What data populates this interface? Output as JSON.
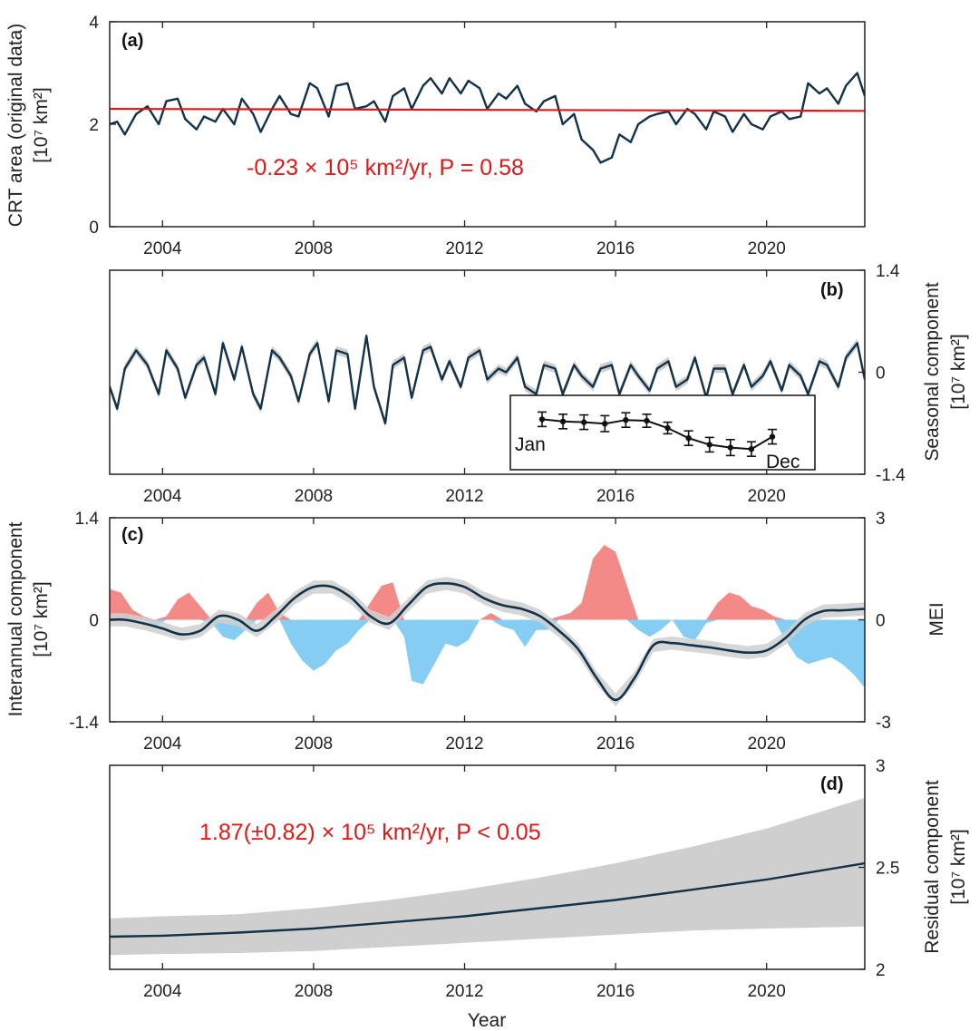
{
  "figure": {
    "xlabel": "Year",
    "x_range": [
      2002.6,
      2022.6
    ],
    "x_ticks": [
      2004,
      2008,
      2012,
      2016,
      2020
    ],
    "colors": {
      "line": "#12324a",
      "trend": "#e01818",
      "band": "#cfcfcf",
      "pos": "#f48a88",
      "neg": "#85cdf2"
    }
  },
  "chart_data": [
    {
      "id": "a",
      "panel_label": "(a)",
      "type": "line",
      "title": "",
      "ylabel": "CRT area (original data)",
      "yunit": "[10⁷ km²]",
      "ylim": [
        0,
        4
      ],
      "yticks": [
        "0",
        "2",
        "4"
      ],
      "y_axis_side": "left",
      "annotation": "-0.23 × 10⁵ km²/yr, P = 0.58",
      "trend_line": {
        "x": [
          2002.6,
          2022.6
        ],
        "y": [
          2.3,
          2.26
        ]
      },
      "series": [
        {
          "name": "CRT area",
          "x": [
            2002.6,
            2002.8,
            2003.0,
            2003.3,
            2003.6,
            2003.9,
            2004.1,
            2004.4,
            2004.6,
            2004.9,
            2005.1,
            2005.4,
            2005.6,
            2005.9,
            2006.1,
            2006.4,
            2006.6,
            2006.9,
            2007.1,
            2007.4,
            2007.6,
            2007.9,
            2008.1,
            2008.4,
            2008.6,
            2008.9,
            2009.1,
            2009.4,
            2009.6,
            2009.9,
            2010.1,
            2010.4,
            2010.6,
            2010.9,
            2011.1,
            2011.4,
            2011.6,
            2011.9,
            2012.1,
            2012.4,
            2012.6,
            2012.9,
            2013.1,
            2013.4,
            2013.6,
            2013.9,
            2014.1,
            2014.4,
            2014.6,
            2014.9,
            2015.1,
            2015.4,
            2015.6,
            2015.9,
            2016.1,
            2016.4,
            2016.6,
            2016.9,
            2017.1,
            2017.4,
            2017.6,
            2017.9,
            2018.1,
            2018.4,
            2018.6,
            2018.9,
            2019.1,
            2019.4,
            2019.6,
            2019.9,
            2020.1,
            2020.4,
            2020.6,
            2020.9,
            2021.1,
            2021.4,
            2021.6,
            2021.9,
            2022.1,
            2022.4,
            2022.6
          ],
          "y": [
            2.0,
            2.05,
            1.8,
            2.2,
            2.35,
            2.0,
            2.45,
            2.5,
            2.1,
            1.9,
            2.15,
            2.05,
            2.3,
            2.0,
            2.5,
            2.2,
            1.85,
            2.3,
            2.55,
            2.2,
            2.15,
            2.8,
            2.7,
            2.15,
            2.75,
            2.8,
            2.3,
            2.35,
            2.45,
            2.05,
            2.55,
            2.7,
            2.3,
            2.75,
            2.9,
            2.6,
            2.9,
            2.6,
            2.85,
            2.7,
            2.3,
            2.6,
            2.5,
            2.75,
            2.4,
            2.25,
            2.45,
            2.55,
            2.0,
            2.2,
            1.7,
            1.5,
            1.25,
            1.35,
            1.8,
            1.65,
            2.0,
            2.15,
            2.2,
            2.25,
            2.0,
            2.3,
            2.2,
            1.9,
            2.25,
            2.15,
            1.85,
            2.2,
            2.0,
            1.9,
            2.15,
            2.25,
            2.1,
            2.15,
            2.8,
            2.6,
            2.7,
            2.4,
            2.75,
            3.0,
            2.55
          ]
        }
      ]
    },
    {
      "id": "b",
      "panel_label": "(b)",
      "type": "line",
      "title": "",
      "ylabel": "Seasonal component",
      "yunit": "[10⁷ km²]",
      "ylim": [
        -1.4,
        1.4
      ],
      "yticks": [
        "-1.4",
        "0",
        "1.4"
      ],
      "y_axis_side": "right",
      "series": [
        {
          "name": "Seasonal",
          "x": [
            2002.6,
            2002.8,
            2003.0,
            2003.3,
            2003.6,
            2003.9,
            2004.1,
            2004.4,
            2004.6,
            2004.9,
            2005.1,
            2005.4,
            2005.6,
            2005.9,
            2006.1,
            2006.4,
            2006.6,
            2006.9,
            2007.1,
            2007.4,
            2007.6,
            2007.9,
            2008.1,
            2008.4,
            2008.6,
            2008.9,
            2009.1,
            2009.4,
            2009.6,
            2009.9,
            2010.1,
            2010.4,
            2010.6,
            2010.9,
            2011.1,
            2011.4,
            2011.6,
            2011.9,
            2012.1,
            2012.4,
            2012.6,
            2012.9,
            2013.1,
            2013.4,
            2013.6,
            2013.9,
            2014.1,
            2014.4,
            2014.6,
            2014.9,
            2015.1,
            2015.4,
            2015.6,
            2015.9,
            2016.1,
            2016.4,
            2016.6,
            2016.9,
            2017.1,
            2017.4,
            2017.6,
            2017.9,
            2018.1,
            2018.4,
            2018.6,
            2018.9,
            2019.1,
            2019.4,
            2019.6,
            2019.9,
            2020.1,
            2020.4,
            2020.6,
            2020.9,
            2021.1,
            2021.4,
            2021.6,
            2021.9,
            2022.1,
            2022.4,
            2022.6
          ],
          "y": [
            -0.2,
            -0.5,
            0.05,
            0.3,
            0.1,
            -0.3,
            0.3,
            0.05,
            -0.35,
            0.1,
            0.2,
            -0.3,
            0.4,
            -0.1,
            0.35,
            -0.3,
            -0.5,
            0.3,
            0.2,
            -0.05,
            -0.4,
            0.25,
            0.4,
            -0.4,
            0.3,
            0.25,
            -0.5,
            0.5,
            -0.2,
            -0.7,
            0.1,
            0.2,
            -0.35,
            0.3,
            0.35,
            -0.1,
            0.15,
            -0.2,
            0.2,
            0.3,
            -0.1,
            0.05,
            0.0,
            0.2,
            -0.2,
            -0.3,
            0.1,
            0.05,
            -0.3,
            0.1,
            -0.05,
            -0.2,
            0.05,
            0.1,
            -0.3,
            0.1,
            -0.05,
            -0.25,
            0.05,
            0.15,
            -0.2,
            -0.1,
            0.2,
            -0.35,
            0.05,
            0.05,
            -0.3,
            0.1,
            -0.2,
            -0.05,
            0.15,
            -0.25,
            0.1,
            -0.05,
            -0.3,
            0.15,
            0.1,
            -0.2,
            0.2,
            0.4,
            -0.1
          ]
        }
      ],
      "inset": {
        "start_label": "Jan",
        "end_label": "Dec",
        "months": [
          1,
          2,
          3,
          4,
          5,
          6,
          7,
          8,
          9,
          10,
          11,
          12
        ],
        "values": [
          0.62,
          0.59,
          0.58,
          0.56,
          0.61,
          0.6,
          0.5,
          0.36,
          0.27,
          0.23,
          0.21,
          0.38
        ],
        "errors": [
          0.1,
          0.1,
          0.1,
          0.11,
          0.1,
          0.09,
          0.08,
          0.1,
          0.1,
          0.11,
          0.1,
          0.1
        ]
      }
    },
    {
      "id": "c",
      "panel_label": "(c)",
      "type": "area",
      "title": "",
      "ylabel": "Interannual component",
      "yunit": "[10⁷ km²]",
      "ylim": [
        -1.4,
        1.4
      ],
      "yticks": [
        "-1.4",
        "0",
        "1.4"
      ],
      "y_axis_side": "left",
      "y2label": "MEI",
      "y2lim": [
        -3,
        3
      ],
      "y2ticks": [
        "-3",
        "0",
        "3"
      ],
      "mei": {
        "name": "MEI",
        "x": [
          2002.6,
          2002.9,
          2003.2,
          2003.5,
          2003.8,
          2004.1,
          2004.4,
          2004.7,
          2005.0,
          2005.3,
          2005.6,
          2005.9,
          2006.2,
          2006.5,
          2006.8,
          2007.1,
          2007.4,
          2007.7,
          2008.0,
          2008.3,
          2008.6,
          2008.9,
          2009.2,
          2009.5,
          2009.8,
          2010.1,
          2010.4,
          2010.6,
          2010.9,
          2011.2,
          2011.5,
          2011.8,
          2012.1,
          2012.4,
          2012.7,
          2013.0,
          2013.3,
          2013.6,
          2013.9,
          2014.2,
          2014.5,
          2014.8,
          2015.1,
          2015.4,
          2015.7,
          2016.0,
          2016.3,
          2016.6,
          2016.9,
          2017.2,
          2017.5,
          2017.8,
          2018.1,
          2018.4,
          2018.7,
          2019.0,
          2019.3,
          2019.6,
          2019.9,
          2020.2,
          2020.5,
          2020.8,
          2021.1,
          2021.4,
          2021.7,
          2022.0,
          2022.3,
          2022.6
        ],
        "y": [
          0.9,
          0.8,
          0.3,
          0.1,
          -0.2,
          0.1,
          0.6,
          0.8,
          0.4,
          -0.1,
          -0.5,
          -0.6,
          -0.3,
          0.5,
          0.8,
          0.2,
          -0.7,
          -1.2,
          -1.5,
          -1.3,
          -0.9,
          -0.7,
          -0.3,
          0.5,
          1.0,
          1.1,
          -0.5,
          -1.8,
          -1.9,
          -1.3,
          -0.7,
          -0.8,
          -0.6,
          0.0,
          0.2,
          -0.2,
          -0.3,
          -0.8,
          -0.3,
          -0.3,
          0.1,
          0.2,
          0.5,
          1.8,
          2.2,
          2.0,
          1.0,
          -0.3,
          -0.5,
          -0.3,
          0.0,
          -0.5,
          -0.6,
          -0.1,
          0.5,
          0.8,
          0.7,
          0.4,
          0.3,
          0.1,
          -0.6,
          -1.1,
          -1.3,
          -1.2,
          -1.1,
          -1.3,
          -1.6,
          -2.0
        ]
      },
      "series": [
        {
          "name": "Interannual",
          "x": [
            2002.6,
            2003.0,
            2003.5,
            2004.0,
            2004.5,
            2005.0,
            2005.5,
            2006.0,
            2006.5,
            2007.0,
            2007.5,
            2008.0,
            2008.5,
            2009.0,
            2009.5,
            2010.0,
            2010.5,
            2011.0,
            2011.5,
            2012.0,
            2012.5,
            2013.0,
            2013.5,
            2014.0,
            2014.5,
            2015.0,
            2015.5,
            2016.0,
            2016.5,
            2017.0,
            2017.5,
            2018.0,
            2018.5,
            2019.0,
            2019.5,
            2020.0,
            2020.5,
            2021.0,
            2021.5,
            2022.0,
            2022.6
          ],
          "y": [
            0.0,
            0.0,
            -0.05,
            -0.12,
            -0.2,
            -0.15,
            0.05,
            0.0,
            -0.15,
            0.05,
            0.3,
            0.45,
            0.45,
            0.3,
            0.05,
            -0.05,
            0.2,
            0.45,
            0.5,
            0.45,
            0.3,
            0.2,
            0.15,
            0.05,
            -0.15,
            -0.4,
            -0.8,
            -1.1,
            -0.8,
            -0.35,
            -0.32,
            -0.35,
            -0.38,
            -0.42,
            -0.45,
            -0.42,
            -0.25,
            0.0,
            0.12,
            0.13,
            0.15
          ]
        }
      ]
    },
    {
      "id": "d",
      "panel_label": "(d)",
      "type": "line",
      "title": "",
      "ylabel": "Residual component",
      "yunit": "[10⁷ km²]",
      "ylim": [
        2,
        3
      ],
      "yticks": [
        "2",
        "2.5",
        "3"
      ],
      "y_axis_side": "right",
      "annotation": "1.87(±0.82) × 10⁵ km²/yr, P < 0.05",
      "series": [
        {
          "name": "Residual",
          "x": [
            2002.6,
            2004.0,
            2006.0,
            2008.0,
            2010.0,
            2012.0,
            2014.0,
            2016.0,
            2018.0,
            2020.0,
            2022.6
          ],
          "y": [
            2.16,
            2.165,
            2.18,
            2.2,
            2.23,
            2.26,
            2.3,
            2.34,
            2.39,
            2.44,
            2.52
          ],
          "lower": [
            2.07,
            2.075,
            2.08,
            2.09,
            2.11,
            2.13,
            2.15,
            2.17,
            2.19,
            2.2,
            2.21
          ],
          "upper": [
            2.25,
            2.26,
            2.27,
            2.3,
            2.34,
            2.39,
            2.45,
            2.52,
            2.6,
            2.69,
            2.84
          ]
        }
      ]
    }
  ]
}
